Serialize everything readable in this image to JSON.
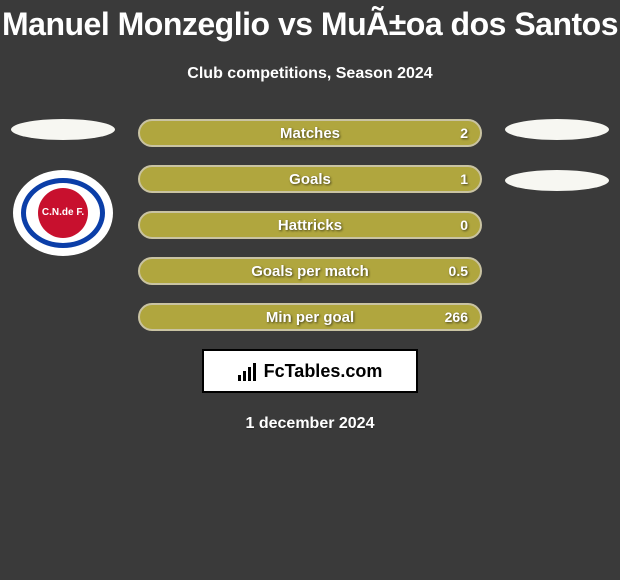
{
  "title": "Manuel Monzeglio vs MuÃ±oa dos Santos",
  "subtitle": "Club competitions, Season 2024",
  "date": "1 december 2024",
  "brand": "FcTables.com",
  "colors": {
    "background": "#3a3a3a",
    "bar_fill": "#b0a63e",
    "bar_border": "#c9c3a2",
    "ellipse": "#f7f7f2",
    "crest_ring": "#0b3ea8",
    "crest_inner": "#c8102e",
    "brand_box_bg": "#ffffff",
    "brand_box_border": "#000000"
  },
  "bars": [
    {
      "label": "Matches",
      "value": "2"
    },
    {
      "label": "Goals",
      "value": "1"
    },
    {
      "label": "Hattricks",
      "value": "0"
    },
    {
      "label": "Goals per match",
      "value": "0.5"
    },
    {
      "label": "Min per goal",
      "value": "266"
    }
  ],
  "crest_text": "C.N.de F."
}
